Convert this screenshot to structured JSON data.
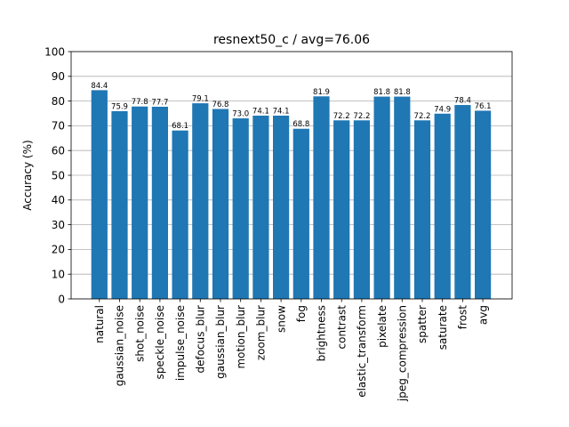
{
  "chart_data": {
    "type": "bar",
    "title": "resnext50_c / avg=76.06",
    "xlabel": "",
    "ylabel": "Accuracy (%)",
    "ylim": [
      0,
      100
    ],
    "yticks": [
      0,
      10,
      20,
      30,
      40,
      50,
      60,
      70,
      80,
      90,
      100
    ],
    "grid": "horizontal",
    "bar_color": "#1f77b4",
    "categories": [
      "natural",
      "gaussian_noise",
      "shot_noise",
      "speckle_noise",
      "impulse_noise",
      "defocus_blur",
      "gaussian_blur",
      "motion_blur",
      "zoom_blur",
      "snow",
      "fog",
      "brightness",
      "contrast",
      "elastic_transform",
      "pixelate",
      "jpeg_compression",
      "spatter",
      "saturate",
      "frost",
      "avg"
    ],
    "values": [
      84.4,
      75.9,
      77.8,
      77.7,
      68.1,
      79.1,
      76.8,
      73.0,
      74.1,
      74.1,
      68.8,
      81.9,
      72.2,
      72.2,
      81.8,
      81.8,
      72.2,
      74.9,
      78.4,
      76.1
    ],
    "value_labels": [
      "84.4",
      "75.9",
      "77.8",
      "77.7",
      "68.1",
      "79.1",
      "76.8",
      "73.0",
      "74.1",
      "74.1",
      "68.8",
      "81.9",
      "72.2",
      "72.2",
      "81.8",
      "81.8",
      "72.2",
      "74.9",
      "78.4",
      "76.1"
    ]
  }
}
